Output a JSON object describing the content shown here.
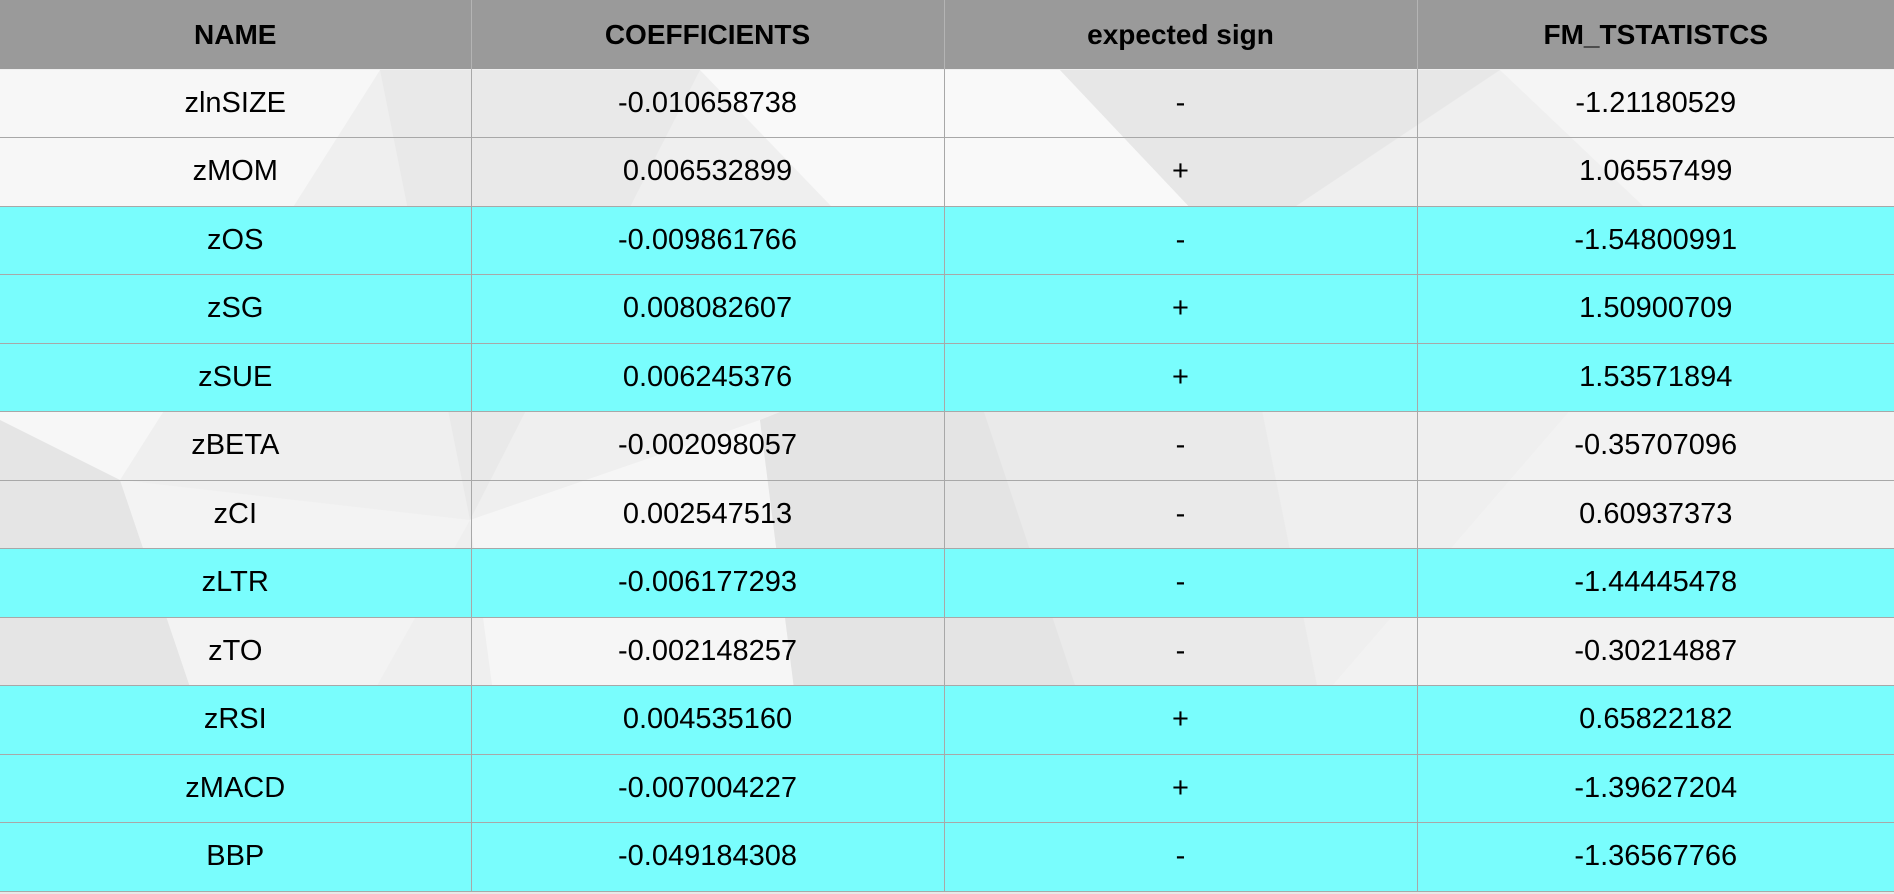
{
  "table": {
    "headers": [
      "NAME",
      "COEFFICIENTS",
      "expected sign",
      "FM_TSTATISTCS"
    ],
    "rows": [
      {
        "name": "zlnSIZE",
        "coefficient": "-0.010658738",
        "expected_sign": "-",
        "fm_tstatistic": "-1.21180529",
        "highlighted": false
      },
      {
        "name": "zMOM",
        "coefficient": "0.006532899",
        "expected_sign": "+",
        "fm_tstatistic": "1.06557499",
        "highlighted": false
      },
      {
        "name": "zOS",
        "coefficient": "-0.009861766",
        "expected_sign": "-",
        "fm_tstatistic": "-1.54800991",
        "highlighted": true
      },
      {
        "name": "zSG",
        "coefficient": "0.008082607",
        "expected_sign": "+",
        "fm_tstatistic": "1.50900709",
        "highlighted": true
      },
      {
        "name": "zSUE",
        "coefficient": "0.006245376",
        "expected_sign": "+",
        "fm_tstatistic": "1.53571894",
        "highlighted": true
      },
      {
        "name": "zBETA",
        "coefficient": "-0.002098057",
        "expected_sign": "-",
        "fm_tstatistic": "-0.35707096",
        "highlighted": false
      },
      {
        "name": "zCI",
        "coefficient": "0.002547513",
        "expected_sign": "-",
        "fm_tstatistic": "0.60937373",
        "highlighted": false
      },
      {
        "name": "zLTR",
        "coefficient": "-0.006177293",
        "expected_sign": "-",
        "fm_tstatistic": "-1.44445478",
        "highlighted": true
      },
      {
        "name": "zTO",
        "coefficient": "-0.002148257",
        "expected_sign": "-",
        "fm_tstatistic": "-0.30214887",
        "highlighted": false
      },
      {
        "name": "zRSI",
        "coefficient": "0.004535160",
        "expected_sign": "+",
        "fm_tstatistic": "0.65822182",
        "highlighted": true
      },
      {
        "name": "zMACD",
        "coefficient": "-0.007004227",
        "expected_sign": "+",
        "fm_tstatistic": "-1.39627204",
        "highlighted": true
      },
      {
        "name": "BBP",
        "coefficient": "-0.049184308",
        "expected_sign": "-",
        "fm_tstatistic": "-1.36567766",
        "highlighted": true
      }
    ]
  },
  "colors": {
    "header_background": "#9a9a9a",
    "highlight_row": "#79fdfd",
    "plain_row_background": "#ececec",
    "grid_line": "#a8a8a8"
  }
}
